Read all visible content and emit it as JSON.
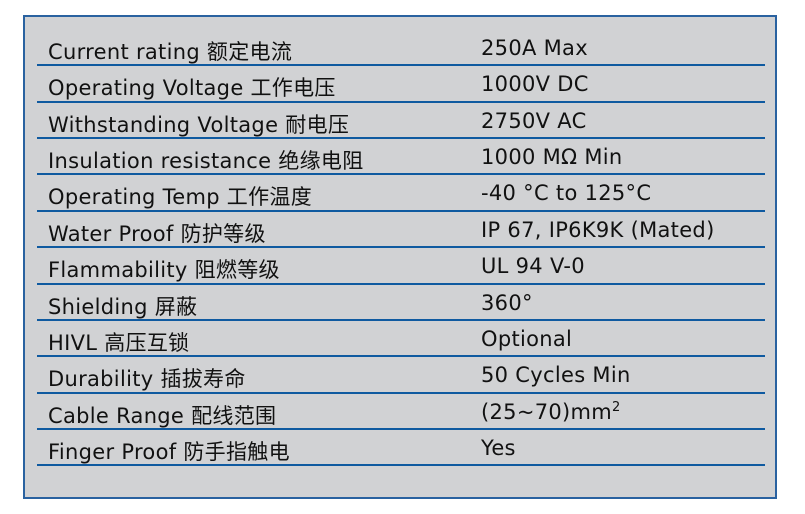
{
  "specs": [
    {
      "label": "Current rating 额定电流",
      "value": "250A Max"
    },
    {
      "label": "Operating Voltage 工作电压",
      "value": "1000V DC"
    },
    {
      "label": "Withstanding Voltage 耐电压",
      "value": "2750V AC"
    },
    {
      "label": "Insulation resistance 绝缘电阻",
      "value": "1000 MΩ Min"
    },
    {
      "label": "Operating Temp 工作温度",
      "value": "-40 °C to 125°C"
    },
    {
      "label": "Water Proof 防护等级",
      "value": "IP 67, IP6K9K (Mated)"
    },
    {
      "label": "Flammability 阻燃等级",
      "value": "UL 94 V-0"
    },
    {
      "label": "Shielding 屏蔽",
      "value": "360°"
    },
    {
      "label": "HIVL 高压互锁",
      "value": "Optional"
    },
    {
      "label": "Durability 插拔寿命",
      "value": "50 Cycles Min"
    },
    {
      "label": "Cable Range 配线范围",
      "value": "(25~70)mm",
      "value_sup": "2"
    },
    {
      "label": "Finger Proof 防手指触电",
      "value": "Yes"
    }
  ],
  "colors": {
    "background": "#d1d2d4",
    "rule": "#0f5aa0",
    "border": "#2a62a0"
  }
}
